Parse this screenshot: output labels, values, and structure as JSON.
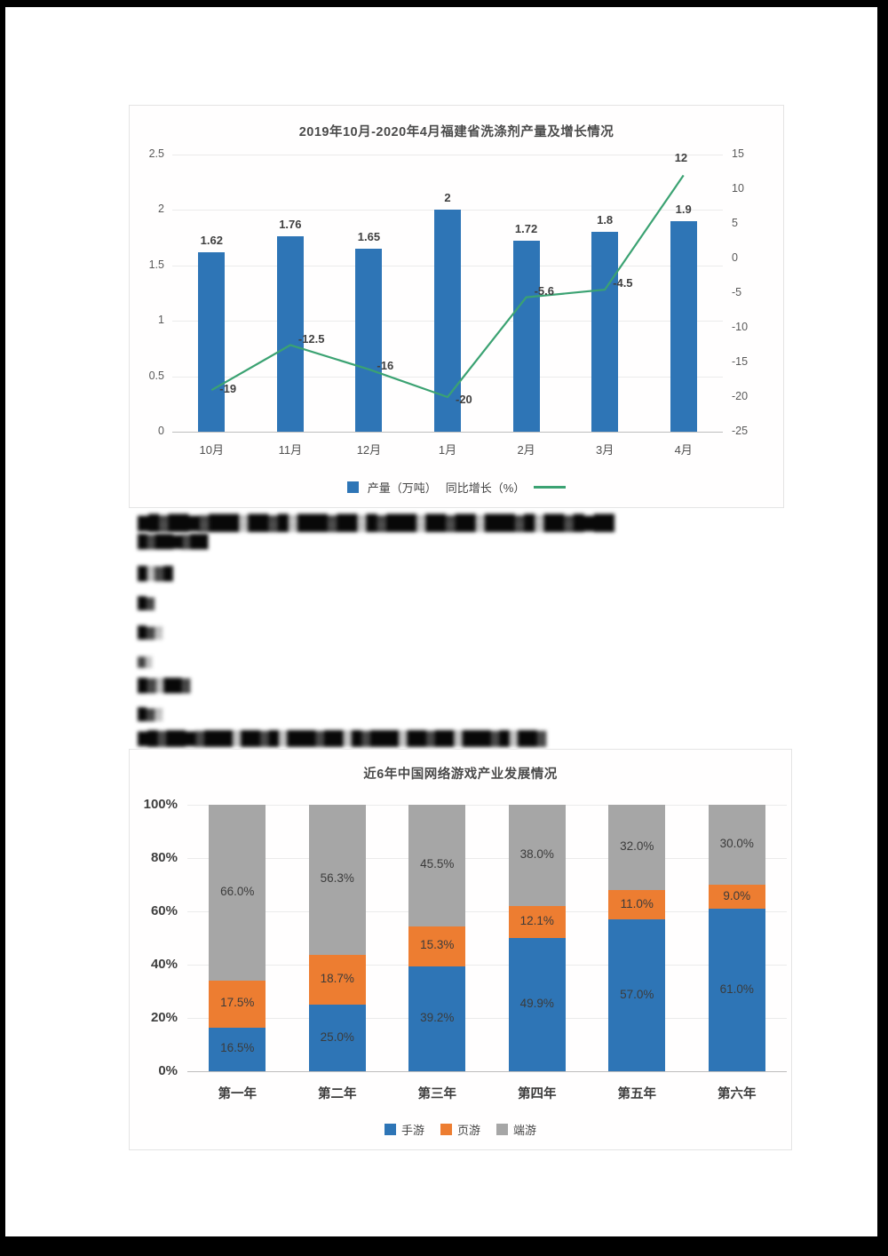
{
  "chart_data": [
    {
      "id": "detergent-production",
      "type": "bar+line",
      "title": "2019年10月-2020年4月福建省洗涤剂产量及增长情况",
      "categories": [
        "10月",
        "11月",
        "12月",
        "1月",
        "2月",
        "3月",
        "4月"
      ],
      "series": [
        {
          "name": "产量（万吨）",
          "chart": "bar",
          "axis": "left",
          "color": "#2E75B6",
          "values": [
            1.62,
            1.76,
            1.65,
            2,
            1.72,
            1.8,
            1.9
          ],
          "labels": [
            "1.62",
            "1.76",
            "1.65",
            "2",
            "1.72",
            "1.8",
            "1.9"
          ]
        },
        {
          "name": "同比增长（%）",
          "chart": "line",
          "axis": "right",
          "color": "#3BA272",
          "values": [
            -19,
            -12.5,
            -16,
            -20,
            -5.6,
            -4.5,
            12
          ],
          "labels": [
            "-19",
            "-12.5",
            "-16",
            "-20",
            "-5.6",
            "-4.5",
            "12"
          ]
        }
      ],
      "left_axis": {
        "min": 0,
        "max": 2.5,
        "ticks": [
          "2.5",
          "2",
          "1.5",
          "1",
          "0.5",
          "0"
        ]
      },
      "right_axis": {
        "min": -25,
        "max": 15,
        "ticks": [
          "15",
          "10",
          "5",
          "0",
          "-5",
          "-10",
          "-15",
          "-20",
          "-25"
        ]
      },
      "grid": true,
      "legend_position": "bottom"
    },
    {
      "id": "online-games-industry",
      "type": "stacked-bar-100",
      "title": "近6年中国网络游戏产业发展情况",
      "categories": [
        "第一年",
        "第二年",
        "第三年",
        "第四年",
        "第五年",
        "第六年"
      ],
      "series": [
        {
          "name": "手游",
          "color": "#2E75B6",
          "values": [
            16.5,
            25.0,
            39.2,
            49.9,
            57.0,
            61.0
          ],
          "labels": [
            "16.5%",
            "25.0%",
            "39.2%",
            "49.9%",
            "57.0%",
            "61.0%"
          ]
        },
        {
          "name": "页游",
          "color": "#ED7D31",
          "values": [
            17.5,
            18.7,
            15.3,
            12.1,
            11.0,
            9.0
          ],
          "labels": [
            "17.5%",
            "18.7%",
            "15.3%",
            "12.1%",
            "11.0%",
            "9.0%"
          ]
        },
        {
          "name": "端游",
          "color": "#A6A6A6",
          "values": [
            66.0,
            56.3,
            45.5,
            38.0,
            32.0,
            30.0
          ],
          "labels": [
            "66.0%",
            "56.3%",
            "45.5%",
            "38.0%",
            "32.0%",
            "30.0%"
          ]
        }
      ],
      "y_axis": {
        "min": 0,
        "max": 100,
        "ticks": [
          "100%",
          "80%",
          "60%",
          "40%",
          "20%",
          "0%"
        ]
      },
      "grid": true,
      "legend_position": "bottom"
    }
  ],
  "text_block": {
    "lines": [
      "▇█▓██▇▓███▒██▓█▒███▓██▒█▓███▒██▓██▒███▓█▒██▓█▇██",
      "█▓██▇▓██",
      "█▒▓█",
      "█▓",
      "█▓▒",
      "▓▒",
      "█▓▒██▓",
      "█▓▒",
      "▇█▓██▇▓███▒██▓█▒███▓██▒█▓███▒██▓██▒███▓█▒██▓"
    ]
  }
}
